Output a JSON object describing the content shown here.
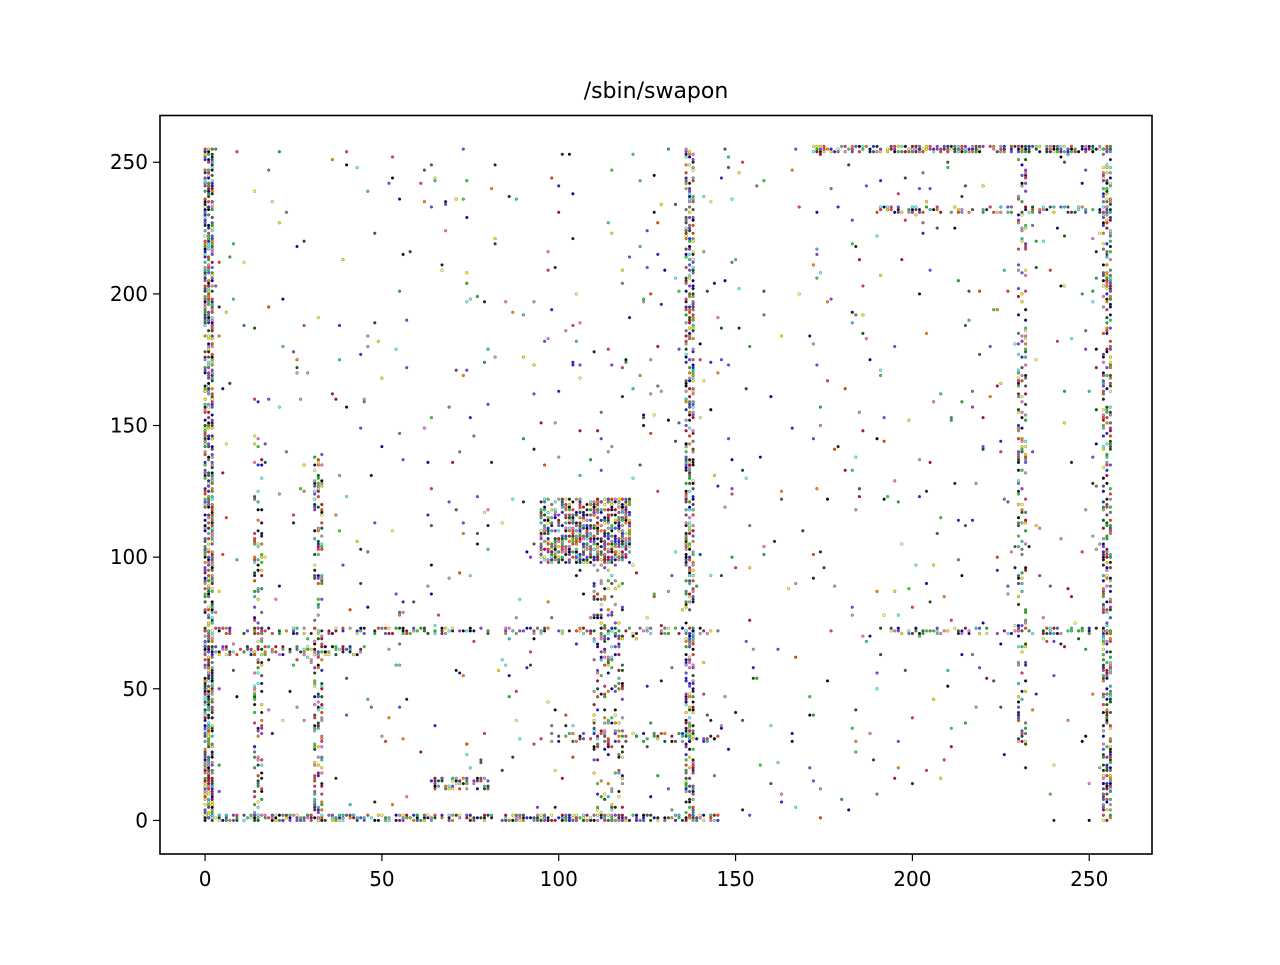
{
  "chart_data": {
    "type": "scatter",
    "title": "/sbin/swapon",
    "xlabel": "",
    "ylabel": "",
    "xlim": [
      -12.75,
      267.75
    ],
    "ylim": [
      -12.75,
      267.75
    ],
    "xticks": [
      0,
      50,
      100,
      150,
      200,
      250
    ],
    "yticks": [
      0,
      50,
      100,
      150,
      200,
      250
    ],
    "grid": false,
    "colors": [
      "#000000",
      "#1f1f1f",
      "#555555",
      "#7f7f7f",
      "#2222ff",
      "#5555ff",
      "#0000aa",
      "#ff3355",
      "#ff77cc",
      "#cc0033",
      "#22bb22",
      "#33dd33",
      "#006600",
      "#ffff66",
      "#ffee00",
      "#ff8800",
      "#ff4400",
      "#66ffff",
      "#33cccc",
      "#9933ff",
      "#aaaaaa"
    ],
    "dense_blocks": [
      {
        "x": [
          95,
          120
        ],
        "y": [
          98,
          122
        ],
        "density": 0.6
      },
      {
        "x": [
          0,
          2
        ],
        "y": [
          0,
          255
        ],
        "density": 0.7
      },
      {
        "x": [
          0,
          145
        ],
        "y": [
          0,
          2
        ],
        "density": 0.6
      },
      {
        "x": [
          136,
          138
        ],
        "y": [
          0,
          255
        ],
        "density": 0.5
      },
      {
        "x": [
          254,
          256
        ],
        "y": [
          0,
          255
        ],
        "density": 0.45
      },
      {
        "x": [
          172,
          256
        ],
        "y": [
          254,
          256
        ],
        "density": 0.7
      },
      {
        "x": [
          0,
          145
        ],
        "y": [
          71,
          73
        ],
        "density": 0.35
      },
      {
        "x": [
          190,
          256
        ],
        "y": [
          71,
          73
        ],
        "density": 0.35
      },
      {
        "x": [
          190,
          256
        ],
        "y": [
          231,
          233
        ],
        "density": 0.35
      },
      {
        "x": [
          31,
          33
        ],
        "y": [
          0,
          140
        ],
        "density": 0.35
      },
      {
        "x": [
          14,
          16
        ],
        "y": [
          0,
          145
        ],
        "density": 0.25
      },
      {
        "x": [
          65,
          80
        ],
        "y": [
          12,
          16
        ],
        "density": 0.5
      },
      {
        "x": [
          0,
          45
        ],
        "y": [
          63,
          66
        ],
        "density": 0.4
      },
      {
        "x": [
          100,
          145
        ],
        "y": [
          30,
          33
        ],
        "density": 0.3
      },
      {
        "x": [
          230,
          232
        ],
        "y": [
          20,
          255
        ],
        "density": 0.25
      },
      {
        "x": [
          110,
          118
        ],
        "y": [
          0,
          122
        ],
        "density": 0.2
      },
      {
        "x": [
          0,
          256
        ],
        "y": [
          0,
          255
        ],
        "density": 0.012
      }
    ]
  }
}
